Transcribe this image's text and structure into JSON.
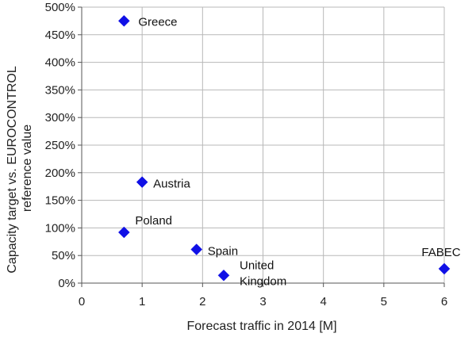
{
  "chart_data": {
    "type": "scatter",
    "title": "",
    "xlabel": "Forecast traffic in 2014 [M]",
    "ylabel_lines": [
      "Capacity target vs. EUROCONTROL",
      "reference value"
    ],
    "xlim": [
      0,
      6
    ],
    "ylim": [
      0,
      500
    ],
    "x_ticks": [
      0,
      1,
      2,
      3,
      4,
      5,
      6
    ],
    "y_ticks": [
      0,
      50,
      100,
      150,
      200,
      250,
      300,
      350,
      400,
      450,
      500
    ],
    "x_tick_labels": [
      "0",
      "1",
      "2",
      "3",
      "4",
      "5",
      "6"
    ],
    "y_tick_labels": [
      "0%",
      "50%",
      "100%",
      "150%",
      "200%",
      "250%",
      "300%",
      "350%",
      "400%",
      "450%",
      "500%"
    ],
    "grid": true,
    "legend": "none",
    "marker": "diamond",
    "marker_color": "#1010e6",
    "points": [
      {
        "label": [
          "Greece"
        ],
        "x": 0.7,
        "y": 475
      },
      {
        "label": [
          "Austria"
        ],
        "x": 1.0,
        "y": 183
      },
      {
        "label": [
          "Poland"
        ],
        "x": 0.7,
        "y": 92
      },
      {
        "label": [
          "Spain"
        ],
        "x": 1.9,
        "y": 61
      },
      {
        "label": [
          "United",
          "Kingdom"
        ],
        "x": 2.35,
        "y": 14
      },
      {
        "label": [
          "FABEC"
        ],
        "x": 6.0,
        "y": 26
      }
    ]
  }
}
